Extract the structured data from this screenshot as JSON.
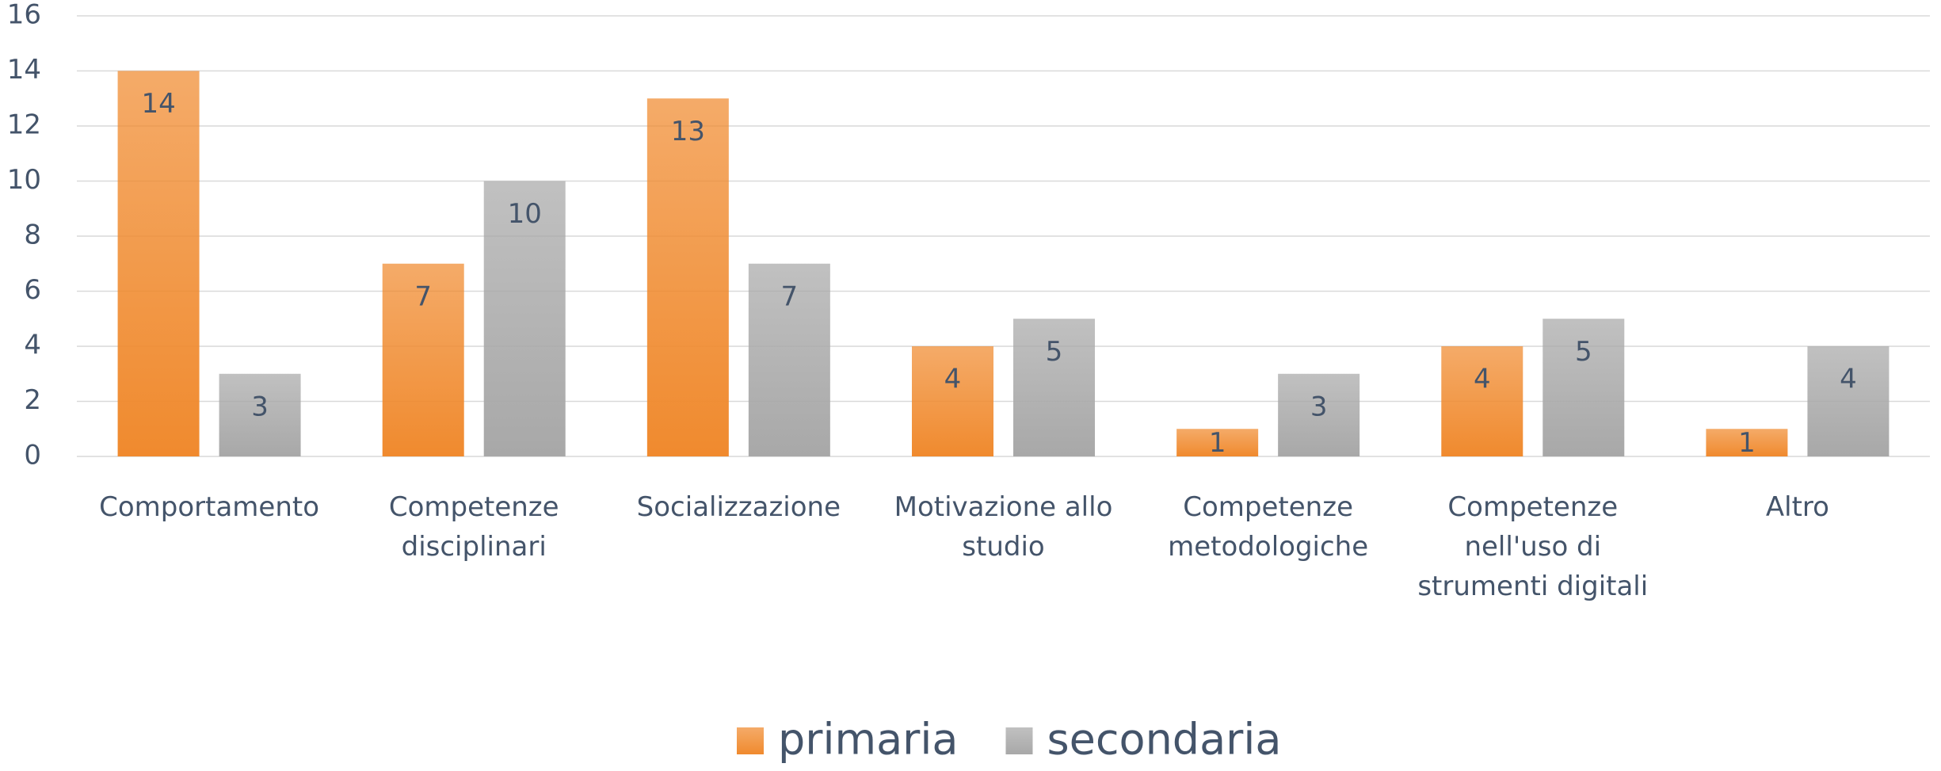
{
  "chart_data": {
    "type": "bar",
    "categories": [
      "Comportamento",
      "Competenze disciplinari",
      "Socializzazione",
      "Motivazione allo studio",
      "Competenze metodologiche",
      "Competenze nell'uso di strumenti digitali",
      "Altro"
    ],
    "series": [
      {
        "name": "primaria",
        "color": "#f08a2e",
        "values": [
          14,
          7,
          13,
          4,
          1,
          4,
          1
        ]
      },
      {
        "name": "secondaria",
        "color": "#a8a8a8",
        "values": [
          3,
          10,
          7,
          5,
          3,
          5,
          4
        ]
      }
    ],
    "ylim": [
      0,
      16
    ],
    "yticks": [
      0,
      2,
      4,
      6,
      8,
      10,
      12,
      14,
      16
    ],
    "grid": true,
    "legend": "bottom"
  }
}
